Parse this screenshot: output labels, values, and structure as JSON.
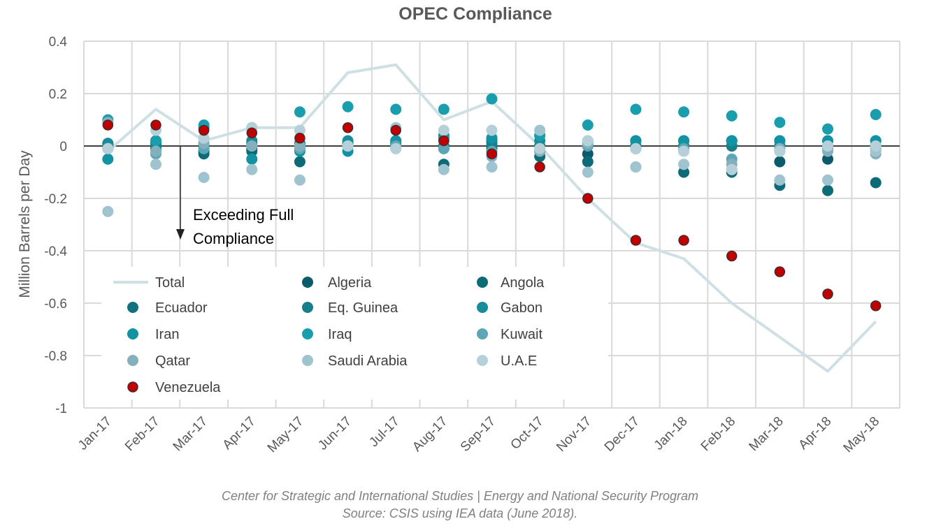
{
  "chart_data": {
    "type": "scatter",
    "title": "OPEC Compliance",
    "xlabel": "",
    "ylabel": "Million Barrels per Day",
    "ylim": [
      -1,
      0.4
    ],
    "yticks": [
      0.4,
      0.2,
      0,
      -0.2,
      -0.4,
      -0.6,
      -0.8,
      -1
    ],
    "ytick_labels": [
      "0.4",
      "0.2",
      "0",
      "-0.2",
      "-0.4",
      "-0.6",
      "-0.8",
      "-1"
    ],
    "grid": true,
    "legend_position": "bottom-left",
    "categories": [
      "Jan-17",
      "Feb-17",
      "Mar-17",
      "Apr-17",
      "May-17",
      "Jun-17",
      "Jul-17",
      "Aug-17",
      "Sep-17",
      "Oct-17",
      "Nov-17",
      "Dec-17",
      "Jan-18",
      "Feb-18",
      "Mar-18",
      "Apr-18",
      "May-18"
    ],
    "line_series": {
      "name": "Total",
      "color": "#cfe0e4",
      "values": [
        -0.02,
        0.14,
        0.02,
        0.07,
        0.07,
        0.28,
        0.31,
        0.1,
        0.17,
        0.0,
        -0.2,
        -0.37,
        -0.43,
        -0.6,
        -0.73,
        -0.86,
        -0.67
      ]
    },
    "series": [
      {
        "name": "Algeria",
        "color": "#0b5c68",
        "values": [
          0.0,
          0.0,
          -0.02,
          -0.01,
          0.0,
          0.0,
          0.01,
          -0.01,
          -0.01,
          -0.02,
          -0.03,
          -0.01,
          0.02,
          0.02,
          -0.06,
          -0.05,
          0.0
        ]
      },
      {
        "name": "Angola",
        "color": "#0d6b78",
        "values": [
          -0.01,
          -0.01,
          -0.03,
          -0.02,
          -0.06,
          0.01,
          0.0,
          -0.07,
          0.02,
          -0.04,
          -0.06,
          0.02,
          -0.1,
          -0.1,
          -0.15,
          -0.17,
          -0.14
        ]
      },
      {
        "name": "Ecuador",
        "color": "#11717d",
        "values": [
          0.01,
          0.01,
          0.0,
          0.0,
          0.01,
          0.0,
          0.0,
          0.0,
          0.0,
          0.0,
          0.0,
          0.0,
          0.0,
          0.0,
          0.0,
          0.0,
          0.0
        ]
      },
      {
        "name": "Eq. Guinea",
        "color": "#157f8b",
        "values": [
          0.0,
          0.0,
          0.0,
          0.01,
          0.0,
          0.01,
          0.0,
          0.0,
          0.01,
          0.0,
          0.0,
          0.0,
          0.0,
          0.0,
          0.0,
          0.0,
          0.0
        ]
      },
      {
        "name": "Gabon",
        "color": "#178c9a",
        "values": [
          0.01,
          0.02,
          0.01,
          0.02,
          0.01,
          0.02,
          0.02,
          0.03,
          0.03,
          0.02,
          0.01,
          0.02,
          0.02,
          0.02,
          0.02,
          0.02,
          0.02
        ]
      },
      {
        "name": "Iran",
        "color": "#1293a4",
        "values": [
          -0.05,
          0.02,
          0.07,
          -0.05,
          -0.02,
          -0.02,
          0.02,
          0.04,
          0.03,
          0.04,
          0.02,
          0.02,
          0.02,
          0.02,
          0.02,
          0.02,
          0.02
        ]
      },
      {
        "name": "Iraq",
        "color": "#1a9eae",
        "values": [
          0.1,
          0.02,
          0.08,
          0.07,
          0.13,
          0.15,
          0.14,
          0.14,
          0.18,
          0.04,
          0.08,
          0.14,
          0.13,
          0.115,
          0.09,
          0.065,
          0.12
        ]
      },
      {
        "name": "Kuwait",
        "color": "#5ea6b5",
        "values": [
          -0.01,
          -0.03,
          -0.01,
          0.0,
          -0.01,
          0.0,
          0.0,
          -0.01,
          -0.02,
          -0.01,
          0.0,
          -0.01,
          -0.01,
          -0.05,
          -0.02,
          -0.01,
          -0.01
        ]
      },
      {
        "name": "Qatar",
        "color": "#84b0be",
        "values": [
          0.09,
          -0.02,
          0.01,
          0.0,
          0.0,
          0.0,
          -0.01,
          0.02,
          -0.04,
          -0.02,
          0.01,
          -0.08,
          -0.02,
          -0.07,
          -0.01,
          -0.02,
          -0.03
        ]
      },
      {
        "name": "Saudi Arabia",
        "color": "#9fc3cf",
        "values": [
          -0.25,
          -0.07,
          -0.12,
          -0.09,
          -0.13,
          0.0,
          0.07,
          -0.09,
          -0.08,
          0.06,
          -0.1,
          -0.08,
          -0.07,
          -0.09,
          -0.13,
          -0.13,
          -0.02
        ]
      },
      {
        "name": "U.A.E",
        "color": "#b6d0d9",
        "values": [
          -0.01,
          0.06,
          0.03,
          0.07,
          0.06,
          0.0,
          -0.01,
          0.06,
          0.06,
          -0.01,
          0.02,
          -0.01,
          -0.02,
          -0.09,
          -0.02,
          0.0,
          0.0
        ]
      },
      {
        "name": "Venezuela",
        "color": "#c00000",
        "values": [
          0.08,
          0.08,
          0.06,
          0.05,
          0.03,
          0.07,
          0.06,
          0.02,
          -0.03,
          -0.08,
          -0.2,
          -0.36,
          -0.36,
          -0.42,
          -0.48,
          -0.565,
          -0.61
        ]
      }
    ],
    "annotation": {
      "line1": "Exceeding Full",
      "line2": "Compliance",
      "value": 0,
      "category": "Mar-17"
    }
  },
  "footer": {
    "line1": "Center for Strategic and International Studies | Energy and National Security Program",
    "line2": "Source: CSIS using IEA data (June 2018)."
  }
}
